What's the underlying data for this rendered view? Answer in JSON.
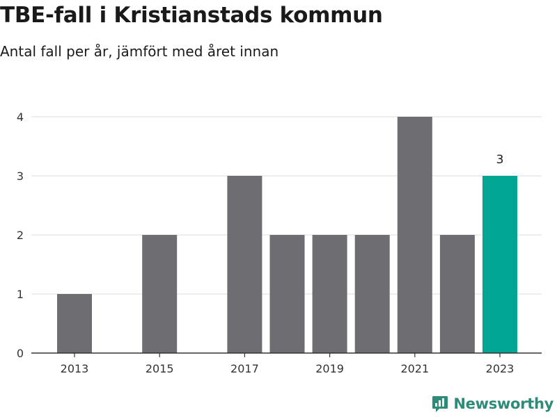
{
  "header": {
    "title": "TBE-fall i Kristianstads kommun",
    "subtitle": "Antal fall per år, jämfört med året innan"
  },
  "brand": {
    "name": "Newsworthy",
    "icon": "bar-chart-logo-icon"
  },
  "colors": {
    "bar": "#6e6d72",
    "highlight": "#00a693",
    "grid": "#dddddd",
    "axis": "#333333",
    "brand": "#2e8b7a"
  },
  "chart_data": {
    "type": "bar",
    "categories": [
      "2013",
      "2014",
      "2015",
      "2016",
      "2017",
      "2018",
      "2019",
      "2020",
      "2021",
      "2022",
      "2023"
    ],
    "values": [
      1,
      0,
      2,
      0,
      3,
      2,
      2,
      2,
      4,
      2,
      3
    ],
    "x_tick_labels": [
      "2013",
      "2015",
      "2017",
      "2019",
      "2021",
      "2023"
    ],
    "y_ticks": [
      0,
      1,
      2,
      3,
      4
    ],
    "ylim": [
      0,
      4
    ],
    "highlight": "2023",
    "data_labels": [
      {
        "category": "2023",
        "text": "3"
      }
    ],
    "grid": true,
    "legend": false
  }
}
